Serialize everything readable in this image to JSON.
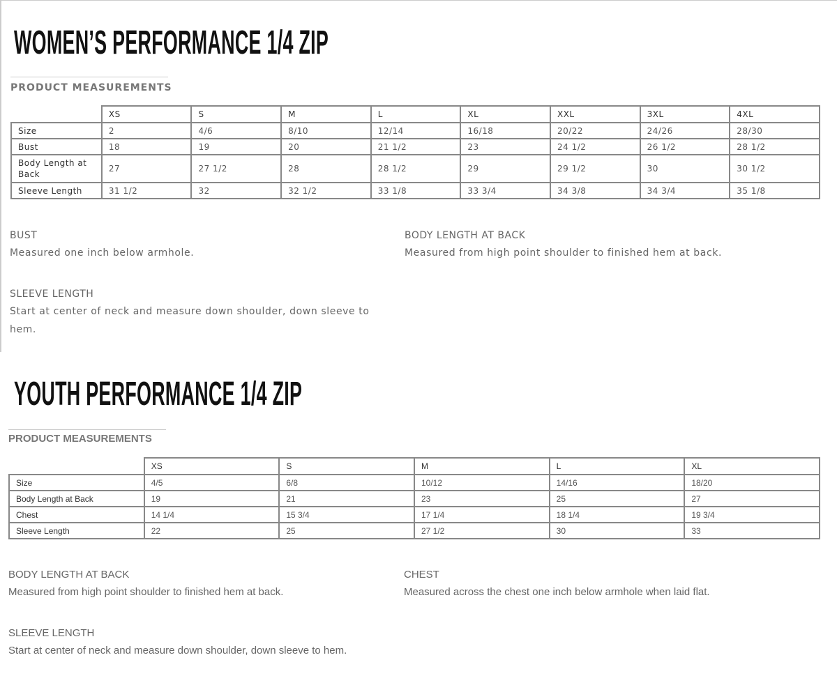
{
  "womens": {
    "title": "WOMEN’S PERFORMANCE 1/4 ZIP",
    "subtitle": "PRODUCT MEASUREMENTS",
    "columns": [
      "XS",
      "S",
      "M",
      "L",
      "XL",
      "XXL",
      "3XL",
      "4XL"
    ],
    "rows": [
      {
        "label": "Size",
        "values": [
          "2",
          "4/6",
          "8/10",
          "12/14",
          "16/18",
          "20/22",
          "24/26",
          "28/30"
        ]
      },
      {
        "label": "Bust",
        "values": [
          "18",
          "19",
          "20",
          "21 1/2",
          "23",
          "24 1/2",
          "26 1/2",
          "28 1/2"
        ]
      },
      {
        "label": "Body Length at Back",
        "values": [
          "27",
          "27 1/2",
          "28",
          "28 1/2",
          "29",
          "29 1/2",
          "30",
          "30 1/2"
        ]
      },
      {
        "label": "Sleeve Length",
        "values": [
          "31 1/2",
          "32",
          "32 1/2",
          "33 1/8",
          "33 3/4",
          "34 3/8",
          "34 3/4",
          "35 1/8"
        ]
      }
    ],
    "notes": [
      {
        "heading": "BUST",
        "text": "Measured one inch below armhole."
      },
      {
        "heading": "BODY LENGTH AT BACK",
        "text": "Measured from high point shoulder to finished hem at back."
      },
      {
        "heading": "SLEEVE LENGTH",
        "text": "Start at center of neck and measure down shoulder, down sleeve to hem."
      }
    ]
  },
  "youth": {
    "title": "YOUTH PERFORMANCE 1/4 ZIP",
    "subtitle": "PRODUCT MEASUREMENTS",
    "columns": [
      "XS",
      "S",
      "M",
      "L",
      "XL"
    ],
    "rows": [
      {
        "label": "Size",
        "values": [
          "4/5",
          "6/8",
          "10/12",
          "14/16",
          "18/20"
        ]
      },
      {
        "label": "Body Length at Back",
        "values": [
          "19",
          "21",
          "23",
          "25",
          "27"
        ]
      },
      {
        "label": "Chest",
        "values": [
          "14 1/4",
          "15 3/4",
          "17 1/4",
          "18 1/4",
          "19 3/4"
        ]
      },
      {
        "label": "Sleeve Length",
        "values": [
          "22",
          "25",
          "27 1/2",
          "30",
          "33"
        ]
      }
    ],
    "notes": [
      {
        "heading": "BODY LENGTH AT BACK",
        "text": "Measured from high point shoulder to finished hem at back."
      },
      {
        "heading": "CHEST",
        "text": "Measured across the chest one inch below armhole when laid flat."
      },
      {
        "heading": "SLEEVE LENGTH",
        "text": "Start at center of neck and measure down shoulder, down sleeve to hem."
      }
    ]
  }
}
